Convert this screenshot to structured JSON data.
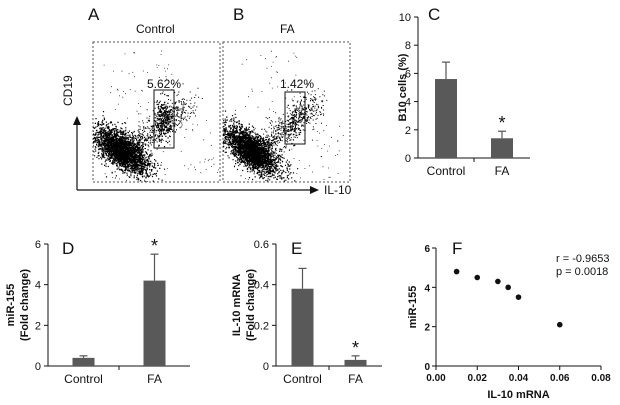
{
  "panels": {
    "A": "A",
    "B": "B",
    "C": "C",
    "D": "D",
    "E": "E",
    "F": "F"
  },
  "flow": {
    "y_axis_label": "CD19",
    "x_axis_label": "IL-10",
    "plots": [
      {
        "title": "Control",
        "percent": "5.62%"
      },
      {
        "title": "FA",
        "percent": "1.42%"
      }
    ]
  },
  "star_symbol": "*",
  "colors": {
    "bar": "#595959",
    "axis": "#111111",
    "dots": "#111111"
  },
  "chart_data": [
    {
      "id": "C",
      "type": "bar",
      "categories": [
        "Control",
        "FA"
      ],
      "values": [
        5.6,
        1.4
      ],
      "errors": [
        1.2,
        0.5
      ],
      "significant": [
        false,
        true
      ],
      "ylabel": "B10 cells (%)",
      "xlabel": "",
      "ylim": [
        0,
        10
      ],
      "yticks": [
        "0",
        "2",
        "4",
        "6",
        "8",
        "10"
      ]
    },
    {
      "id": "D",
      "type": "bar",
      "categories": [
        "Control",
        "FA"
      ],
      "values": [
        0.4,
        4.2
      ],
      "errors": [
        0.1,
        1.3
      ],
      "significant": [
        false,
        true
      ],
      "ylabel": "miR-155",
      "ylabel2": "(Fold change)",
      "xlabel": "",
      "ylim": [
        0,
        6
      ],
      "yticks": [
        "0",
        "2",
        "4",
        "6"
      ]
    },
    {
      "id": "E",
      "type": "bar",
      "categories": [
        "Control",
        "FA"
      ],
      "values": [
        0.38,
        0.03
      ],
      "errors": [
        0.1,
        0.02
      ],
      "significant": [
        false,
        true
      ],
      "ylabel": "IL-10 mRNA",
      "ylabel2": "(Fold change)",
      "xlabel": "",
      "ylim": [
        0,
        0.6
      ],
      "yticks": [
        "0",
        "0.2",
        "0.4",
        "0.6"
      ]
    },
    {
      "id": "F",
      "type": "scatter",
      "x": [
        0.01,
        0.02,
        0.03,
        0.035,
        0.04,
        0.06
      ],
      "y": [
        4.8,
        4.5,
        4.3,
        4.0,
        3.5,
        2.1
      ],
      "xlabel": "IL-10 mRNA",
      "ylabel": "miR-155",
      "xlim": [
        0,
        0.08
      ],
      "ylim": [
        0,
        6
      ],
      "xticks": [
        "0.00",
        "0.02",
        "0.04",
        "0.06",
        "0.08"
      ],
      "yticks": [
        "0",
        "2",
        "4",
        "6"
      ],
      "annotation": [
        "r = -0.9653",
        "p = 0.0018"
      ]
    }
  ]
}
